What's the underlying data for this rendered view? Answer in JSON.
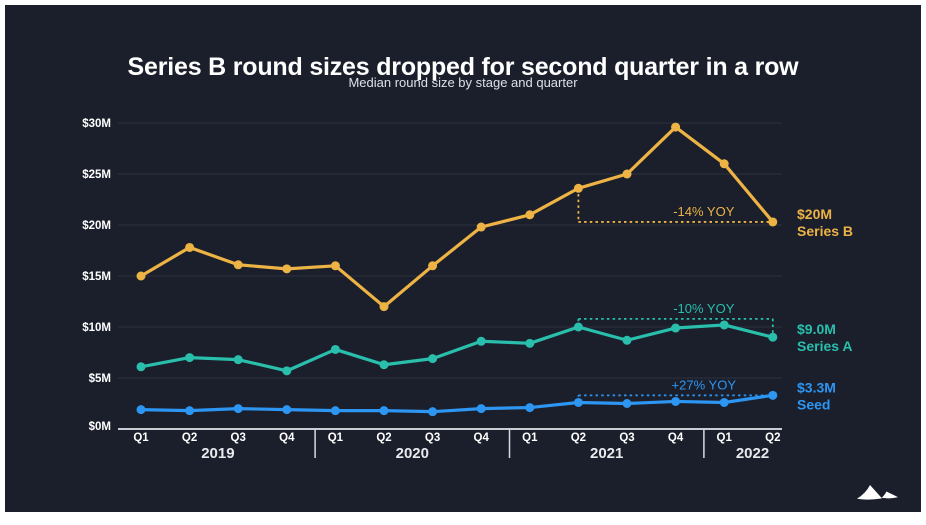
{
  "chart_data": {
    "type": "line",
    "title": "Series B round sizes dropped for second quarter in a row",
    "subtitle": "Median round size by stage and quarter",
    "categories": [
      "Q1 2019",
      "Q2 2019",
      "Q3 2019",
      "Q4 2019",
      "Q1 2020",
      "Q2 2020",
      "Q3 2020",
      "Q4 2020",
      "Q1 2021",
      "Q2 2021",
      "Q3 2021",
      "Q4 2021",
      "Q1 2022",
      "Q2 2022"
    ],
    "quarter_labels": [
      "Q1",
      "Q2",
      "Q3",
      "Q4",
      "Q1",
      "Q2",
      "Q3",
      "Q4",
      "Q1",
      "Q2",
      "Q3",
      "Q4",
      "Q1",
      "Q2"
    ],
    "year_groups": [
      {
        "label": "2019",
        "count": 4
      },
      {
        "label": "2020",
        "count": 4
      },
      {
        "label": "2021",
        "count": 4
      },
      {
        "label": "2022",
        "count": 2
      }
    ],
    "ylim": [
      0,
      30
    ],
    "y_ticks": [
      {
        "value": 0,
        "label": "$0M"
      },
      {
        "value": 5,
        "label": "$5M"
      },
      {
        "value": 10,
        "label": "$10M"
      },
      {
        "value": 15,
        "label": "$15M"
      },
      {
        "value": 20,
        "label": "$20M"
      },
      {
        "value": 25,
        "label": "$25M"
      },
      {
        "value": 30,
        "label": "$30M"
      }
    ],
    "grid": true,
    "legend_position": "right-end-labels",
    "series": [
      {
        "name": "Series B",
        "color_key": "series_b",
        "values": [
          15.0,
          17.8,
          16.1,
          15.7,
          16.0,
          12.0,
          16.0,
          19.8,
          21.0,
          23.6,
          25.0,
          29.6,
          26.0,
          20.3
        ],
        "end_label": {
          "value": "$20M",
          "name": "Series B"
        }
      },
      {
        "name": "Series A",
        "color_key": "series_a",
        "values": [
          6.1,
          7.0,
          6.8,
          5.7,
          7.8,
          6.3,
          6.9,
          8.6,
          8.4,
          10.0,
          8.7,
          9.9,
          10.2,
          9.0
        ],
        "end_label": {
          "value": "$9.0M",
          "name": "Series A"
        }
      },
      {
        "name": "Seed",
        "color_key": "seed",
        "values": [
          1.9,
          1.8,
          2.0,
          1.9,
          1.8,
          1.8,
          1.7,
          2.0,
          2.1,
          2.6,
          2.5,
          2.7,
          2.6,
          3.3
        ],
        "end_label": {
          "value": "$3.3M",
          "name": "Seed"
        }
      }
    ],
    "annotations": [
      {
        "series_index": 0,
        "label": "-14% YOY",
        "from_index": 9,
        "to_index": 13,
        "line_level": 20.3,
        "tick_at_start": true,
        "tick_at_end": false
      },
      {
        "series_index": 1,
        "label": "-10% YOY",
        "from_index": 9,
        "to_index": 13,
        "line_level": 10.8,
        "tick_at_start": true,
        "tick_at_end": true
      },
      {
        "series_index": 2,
        "label": "+27% YOY",
        "from_index": 9,
        "to_index": 13,
        "line_level": 3.3,
        "tick_at_start": true,
        "tick_at_end": false
      }
    ]
  },
  "colors": {
    "background": "#1A1F2B",
    "series_b": "#EDB345",
    "series_a": "#29BFAC",
    "seed": "#2D95F2",
    "grid": "#2D323E",
    "axis": "#C9CCD3",
    "separator": "#D8DADF",
    "logo": "#FFFFFF"
  }
}
